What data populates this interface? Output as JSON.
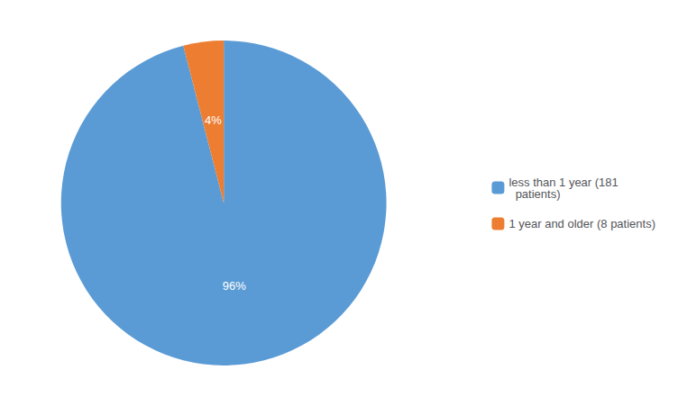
{
  "chart_data": {
    "type": "pie",
    "categories": [
      "less than 1 year (181\n  patients)",
      "1 year and older (8 patients)"
    ],
    "values": [
      96,
      4
    ],
    "value_labels": [
      "96%",
      "4%"
    ],
    "colors": [
      "#5B9BD5",
      "#ED7D31"
    ],
    "data_labels": true,
    "legend": "right"
  }
}
